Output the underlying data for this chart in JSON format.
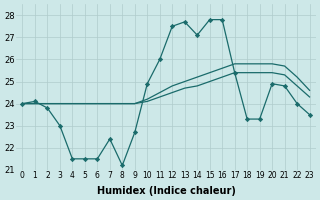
{
  "xlabel": "Humidex (Indice chaleur)",
  "xlim": [
    -0.5,
    23.5
  ],
  "ylim": [
    21,
    28.5
  ],
  "yticks": [
    21,
    22,
    23,
    24,
    25,
    26,
    27,
    28
  ],
  "xticks": [
    0,
    1,
    2,
    3,
    4,
    5,
    6,
    7,
    8,
    9,
    10,
    11,
    12,
    13,
    14,
    15,
    16,
    17,
    18,
    19,
    20,
    21,
    22,
    23
  ],
  "bg_color": "#cde8e8",
  "grid_color": "#b0cccc",
  "line_color": "#1a6b6b",
  "line1_y": [
    24.0,
    24.1,
    23.8,
    23.0,
    21.5,
    21.5,
    21.5,
    22.4,
    21.2,
    22.7,
    24.9,
    26.0,
    27.5,
    27.7,
    27.1,
    27.8,
    27.8,
    25.4,
    23.3,
    23.3,
    24.9,
    24.8,
    24.0,
    23.5
  ],
  "line2_y": [
    24.0,
    24.0,
    24.0,
    24.0,
    24.0,
    24.0,
    24.0,
    24.0,
    24.0,
    24.0,
    24.1,
    24.3,
    24.5,
    24.7,
    24.8,
    25.0,
    25.2,
    25.4,
    25.4,
    25.4,
    25.4,
    25.3,
    24.8,
    24.3
  ],
  "line3_y": [
    24.0,
    24.0,
    24.0,
    24.0,
    24.0,
    24.0,
    24.0,
    24.0,
    24.0,
    24.0,
    24.2,
    24.5,
    24.8,
    25.0,
    25.2,
    25.4,
    25.6,
    25.8,
    25.8,
    25.8,
    25.8,
    25.7,
    25.2,
    24.6
  ]
}
